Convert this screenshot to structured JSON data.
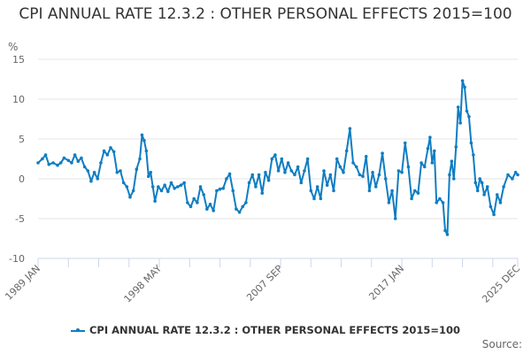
{
  "chart_data": {
    "type": "line",
    "title": "CPI ANNUAL RATE 12.3.2 : OTHER PERSONAL EFFECTS 2015=100",
    "ylabel": "%",
    "xlabel": "",
    "ylim": [
      -10,
      15
    ],
    "yticks": [
      -10,
      -5,
      0,
      5,
      10,
      15
    ],
    "xlim": [
      "1989-01",
      "2025-12"
    ],
    "xtick_labels": [
      {
        "label": "1989 JAN",
        "date": "1989-01"
      },
      {
        "label": "1998 MAY",
        "date": "1998-05"
      },
      {
        "label": "2007 SEP",
        "date": "2007-09"
      },
      {
        "label": "2017 JAN",
        "date": "2017-01"
      },
      {
        "label": "2025 DEC",
        "date": "2025-12"
      }
    ],
    "grid": true,
    "legend": "bottom",
    "color": "#0f7dc2",
    "series": [
      {
        "name": "CPI ANNUAL RATE 12.3.2 : OTHER PERSONAL EFFECTS 2015=100",
        "points": [
          [
            "1989-01",
            2.0
          ],
          [
            "1989-05",
            2.5
          ],
          [
            "1989-08",
            3.0
          ],
          [
            "1989-11",
            1.8
          ],
          [
            "1990-03",
            2.0
          ],
          [
            "1990-07",
            1.7
          ],
          [
            "1990-10",
            2.0
          ],
          [
            "1991-01",
            2.6
          ],
          [
            "1991-05",
            2.3
          ],
          [
            "1991-08",
            2.0
          ],
          [
            "1991-11",
            3.0
          ],
          [
            "1992-02",
            2.2
          ],
          [
            "1992-05",
            2.6
          ],
          [
            "1992-08",
            1.5
          ],
          [
            "1992-11",
            1.0
          ],
          [
            "1993-02",
            -0.3
          ],
          [
            "1993-05",
            0.8
          ],
          [
            "1993-08",
            0.0
          ],
          [
            "1993-11",
            2.0
          ],
          [
            "1994-02",
            3.5
          ],
          [
            "1994-05",
            3.0
          ],
          [
            "1994-08",
            3.9
          ],
          [
            "1994-11",
            3.4
          ],
          [
            "1995-02",
            0.8
          ],
          [
            "1995-05",
            1.0
          ],
          [
            "1995-08",
            -0.5
          ],
          [
            "1995-11",
            -1.0
          ],
          [
            "1996-02",
            -2.3
          ],
          [
            "1996-05",
            -1.5
          ],
          [
            "1996-08",
            1.2
          ],
          [
            "1996-11",
            2.5
          ],
          [
            "1997-01",
            5.5
          ],
          [
            "1997-03",
            4.8
          ],
          [
            "1997-05",
            3.5
          ],
          [
            "1997-07",
            0.3
          ],
          [
            "1997-09",
            0.8
          ],
          [
            "1997-11",
            -1.0
          ],
          [
            "1998-01",
            -2.8
          ],
          [
            "1998-04",
            -1.0
          ],
          [
            "1998-07",
            -1.5
          ],
          [
            "1998-10",
            -0.8
          ],
          [
            "1999-01",
            -1.6
          ],
          [
            "1999-04",
            -0.5
          ],
          [
            "1999-07",
            -1.2
          ],
          [
            "1999-10",
            -1.0
          ],
          [
            "2000-01",
            -0.8
          ],
          [
            "2000-04",
            -0.5
          ],
          [
            "2000-07",
            -3.0
          ],
          [
            "2000-10",
            -3.5
          ],
          [
            "2001-01",
            -2.5
          ],
          [
            "2001-04",
            -3.0
          ],
          [
            "2001-07",
            -1.0
          ],
          [
            "2001-10",
            -2.0
          ],
          [
            "2002-01",
            -3.8
          ],
          [
            "2002-04",
            -3.2
          ],
          [
            "2002-07",
            -4.0
          ],
          [
            "2002-10",
            -1.5
          ],
          [
            "2003-01",
            -1.3
          ],
          [
            "2003-04",
            -1.2
          ],
          [
            "2003-07",
            0.0
          ],
          [
            "2003-10",
            0.6
          ],
          [
            "2004-01",
            -1.5
          ],
          [
            "2004-04",
            -3.8
          ],
          [
            "2004-07",
            -4.2
          ],
          [
            "2004-10",
            -3.5
          ],
          [
            "2005-01",
            -3.0
          ],
          [
            "2005-04",
            -0.5
          ],
          [
            "2005-07",
            0.5
          ],
          [
            "2005-10",
            -1.0
          ],
          [
            "2006-01",
            0.5
          ],
          [
            "2006-04",
            -1.8
          ],
          [
            "2006-07",
            0.8
          ],
          [
            "2006-10",
            -0.2
          ],
          [
            "2007-01",
            2.5
          ],
          [
            "2007-04",
            3.0
          ],
          [
            "2007-07",
            1.0
          ],
          [
            "2007-10",
            2.5
          ],
          [
            "2008-01",
            0.8
          ],
          [
            "2008-04",
            2.0
          ],
          [
            "2008-07",
            1.0
          ],
          [
            "2008-10",
            0.5
          ],
          [
            "2009-01",
            1.5
          ],
          [
            "2009-04",
            -0.5
          ],
          [
            "2009-07",
            1.0
          ],
          [
            "2009-10",
            2.5
          ],
          [
            "2010-01",
            -1.5
          ],
          [
            "2010-04",
            -2.5
          ],
          [
            "2010-07",
            -1.0
          ],
          [
            "2010-10",
            -2.5
          ],
          [
            "2011-01",
            1.0
          ],
          [
            "2011-04",
            -0.8
          ],
          [
            "2011-07",
            0.5
          ],
          [
            "2011-10",
            -1.5
          ],
          [
            "2012-01",
            2.5
          ],
          [
            "2012-04",
            1.5
          ],
          [
            "2012-07",
            0.8
          ],
          [
            "2012-10",
            3.5
          ],
          [
            "2013-01",
            6.3
          ],
          [
            "2013-04",
            2.0
          ],
          [
            "2013-07",
            1.5
          ],
          [
            "2013-10",
            0.5
          ],
          [
            "2014-01",
            0.3
          ],
          [
            "2014-04",
            2.8
          ],
          [
            "2014-07",
            -1.5
          ],
          [
            "2014-10",
            0.8
          ],
          [
            "2015-01",
            -1.0
          ],
          [
            "2015-04",
            0.5
          ],
          [
            "2015-07",
            3.2
          ],
          [
            "2015-10",
            0.0
          ],
          [
            "2016-01",
            -3.0
          ],
          [
            "2016-04",
            -1.5
          ],
          [
            "2016-07",
            -5.0
          ],
          [
            "2016-10",
            1.0
          ],
          [
            "2017-01",
            0.8
          ],
          [
            "2017-04",
            4.5
          ],
          [
            "2017-07",
            1.5
          ],
          [
            "2017-10",
            -2.5
          ],
          [
            "2018-01",
            -1.5
          ],
          [
            "2018-04",
            -1.8
          ],
          [
            "2018-07",
            2.0
          ],
          [
            "2018-10",
            1.5
          ],
          [
            "2019-01",
            3.8
          ],
          [
            "2019-03",
            5.2
          ],
          [
            "2019-05",
            2.0
          ],
          [
            "2019-07",
            3.5
          ],
          [
            "2019-09",
            -3.0
          ],
          [
            "2019-12",
            -2.5
          ],
          [
            "2020-03",
            -3.0
          ],
          [
            "2020-05",
            -6.5
          ],
          [
            "2020-07",
            -7.0
          ],
          [
            "2020-09",
            0.5
          ],
          [
            "2020-11",
            2.2
          ],
          [
            "2021-01",
            0.0
          ],
          [
            "2021-03",
            4.0
          ],
          [
            "2021-05",
            9.0
          ],
          [
            "2021-07",
            7.0
          ],
          [
            "2021-09",
            12.3
          ],
          [
            "2021-11",
            11.5
          ],
          [
            "2022-01",
            8.5
          ],
          [
            "2022-03",
            7.8
          ],
          [
            "2022-05",
            4.5
          ],
          [
            "2022-07",
            3.0
          ],
          [
            "2022-09",
            -0.5
          ],
          [
            "2022-11",
            -1.5
          ],
          [
            "2023-01",
            0.0
          ],
          [
            "2023-03",
            -0.5
          ],
          [
            "2023-05",
            -2.0
          ],
          [
            "2023-08",
            -1.0
          ],
          [
            "2023-11",
            -3.5
          ],
          [
            "2024-02",
            -4.5
          ],
          [
            "2024-05",
            -2.0
          ],
          [
            "2024-08",
            -3.0
          ],
          [
            "2024-11",
            -1.0
          ],
          [
            "2025-03",
            0.5
          ],
          [
            "2025-07",
            0.0
          ],
          [
            "2025-10",
            0.8
          ],
          [
            "2025-12",
            0.5
          ]
        ]
      }
    ]
  },
  "source_label": "Source:"
}
